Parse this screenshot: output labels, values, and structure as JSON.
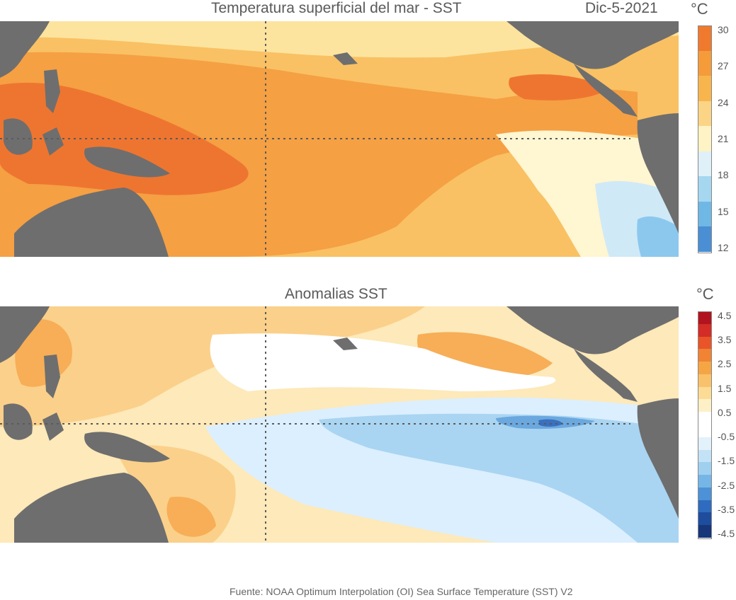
{
  "top_panel": {
    "title": "Temperatura superficial del mar - SST",
    "date": "Dic-5-2021",
    "unit": "°C",
    "colorbar": {
      "ticks": [
        "30",
        "27",
        "24",
        "21",
        "18",
        "15",
        "12"
      ],
      "colors": [
        "#ef7a2e",
        "#f59b39",
        "#f8b54d",
        "#fbd486",
        "#fef3c4",
        "#dff0f9",
        "#a6d7f1",
        "#6fb8e6",
        "#4a8fd4"
      ]
    },
    "colors": {
      "land": "#6e6e6e",
      "warmest": "#ee7530",
      "warm": "#f5a043",
      "mild": "#f9c163",
      "cool": "#fde49e",
      "pale": "#fff6d2",
      "cold": "#cfe9f7",
      "colder": "#8cc8ee"
    }
  },
  "bottom_panel": {
    "title": "Anomalias SST",
    "unit": "°C",
    "colorbar": {
      "ticks": [
        "4.5",
        "3.5",
        "2.5",
        "1.5",
        "0.5",
        "-0.5",
        "-1.5",
        "-2.5",
        "-3.5",
        "-4.5"
      ],
      "colors": [
        "#b1141e",
        "#d42c26",
        "#e95528",
        "#f08334",
        "#f6a545",
        "#f9c26a",
        "#fcdc95",
        "#fef0c6",
        "#ffffff",
        "#ffffff",
        "#e2f1fa",
        "#c3e2f5",
        "#9fd0f0",
        "#76b6e6",
        "#4d92d6",
        "#2f6cbf",
        "#1e4d9e",
        "#17367a"
      ]
    },
    "colors": {
      "land": "#6e6e6e",
      "warm": "#f7ae57",
      "mild": "#fbd08a",
      "pale": "#fde9b9",
      "neutral": "#ffffff",
      "cool": "#dcefff",
      "cold": "#a9d5f2",
      "colder": "#6aa8df",
      "coldest": "#3b6fbf"
    }
  },
  "footer": "Fuente: NOAA Optimum Interpolation (OI) Sea Surface Temperature (SST) V2"
}
